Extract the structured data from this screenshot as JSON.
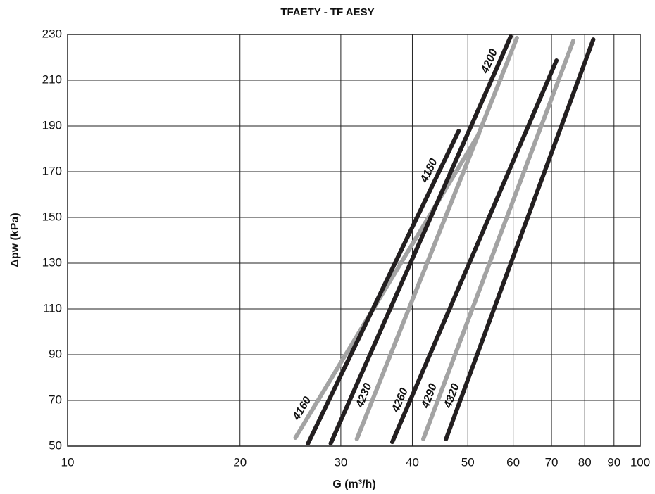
{
  "chart_data": {
    "type": "line",
    "title": "TFAETY - TF AESY",
    "x_label": "G (m³/h)",
    "y_label": "Δpw (kPa)",
    "xscale": "log",
    "xlim": [
      10,
      100
    ],
    "xticks": [
      10,
      20,
      30,
      40,
      50,
      60,
      70,
      80,
      90,
      100
    ],
    "ylim": [
      50,
      230
    ],
    "yticks": [
      50,
      70,
      90,
      110,
      130,
      150,
      170,
      190,
      210,
      230
    ],
    "grid": true,
    "series": [
      {
        "name": "4160",
        "color": "#a3a3a3",
        "x": [
          25.0,
          52.3
        ],
        "values": [
          53.7,
          186.6
        ]
      },
      {
        "name": "4180",
        "color": "#231f20",
        "x": [
          26.3,
          48.2
        ],
        "values": [
          51.2,
          187.8
        ]
      },
      {
        "name": "4200",
        "color": "#231f20",
        "x": [
          28.8,
          59.4
        ],
        "values": [
          51.2,
          229.1
        ]
      },
      {
        "name": "4230",
        "color": "#a3a3a3",
        "x": [
          32.0,
          60.9
        ],
        "values": [
          53.1,
          228.5
        ]
      },
      {
        "name": "4260",
        "color": "#231f20",
        "x": [
          36.9,
          71.4
        ],
        "values": [
          51.8,
          218.6
        ]
      },
      {
        "name": "4290",
        "color": "#a3a3a3",
        "x": [
          41.8,
          76.4
        ],
        "values": [
          53.1,
          227.2
        ]
      },
      {
        "name": "4320",
        "color": "#231f20",
        "x": [
          45.8,
          82.8
        ],
        "values": [
          53.1,
          227.8
        ]
      }
    ]
  }
}
